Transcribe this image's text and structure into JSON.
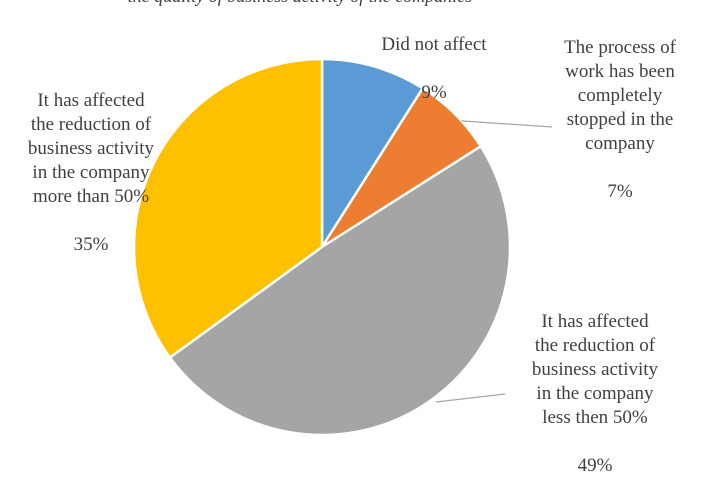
{
  "chart_data": {
    "type": "pie",
    "title": "",
    "title_strip": "the quality of business activity of the companies",
    "start_angle_deg": 0,
    "direction": "clockwise",
    "slices": [
      {
        "label_lines": "Did not affect",
        "percent_label": "9%",
        "value": 9,
        "color": "#5B9BD5"
      },
      {
        "label_lines": "The process of\nwork has been\ncompletely\nstopped in the\ncompany",
        "percent_label": "7%",
        "value": 7,
        "color": "#ED7D31"
      },
      {
        "label_lines": "It has affected\nthe reduction of\nbusiness activity\nin the company\nless then 50%",
        "percent_label": "49%",
        "value": 49,
        "color": "#A5A5A5"
      },
      {
        "label_lines": "It has affected\nthe reduction of\nbusiness activity\nin the company\nmore than 50%",
        "percent_label": "35%",
        "value": 35,
        "color": "#FFC000"
      }
    ]
  }
}
